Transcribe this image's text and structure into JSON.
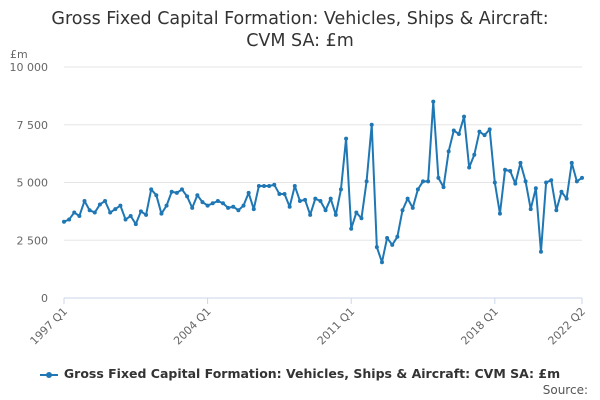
{
  "chart_data": {
    "type": "line",
    "title_line1": "Gross Fixed Capital Formation: Vehicles, Ships & Aircraft:",
    "title_line2": "CVM SA: £m",
    "ylabel": "£m",
    "ylim": [
      0,
      10000
    ],
    "yticks": [
      0,
      2500,
      5000,
      7500,
      10000
    ],
    "ytick_labels": [
      "0",
      "2 500",
      "5 000",
      "7 500",
      "10 000"
    ],
    "xtick_labels": [
      "1997 Q1",
      "2004 Q1",
      "2011 Q1",
      "2018 Q1",
      "2022 Q2"
    ],
    "xtick_index": [
      0,
      28,
      56,
      84,
      101
    ],
    "grid": true,
    "legend_position": "bottom",
    "source_label": "Source:",
    "color": "#1f77b4",
    "series": [
      {
        "name": "Gross Fixed Capital Formation: Vehicles, Ships & Aircraft: CVM SA: £m",
        "values": [
          3300,
          3400,
          3700,
          3550,
          4200,
          3800,
          3700,
          4050,
          4200,
          3700,
          3850,
          4000,
          3400,
          3550,
          3200,
          3750,
          3600,
          4700,
          4450,
          3650,
          4000,
          4600,
          4550,
          4700,
          4400,
          3900,
          4450,
          4150,
          4000,
          4100,
          4200,
          4100,
          3900,
          3950,
          3800,
          4000,
          4550,
          3850,
          4850,
          4850,
          4850,
          4900,
          4500,
          4500,
          3950,
          4850,
          4200,
          4250,
          3600,
          4300,
          4200,
          3800,
          4300,
          3600,
          4700,
          6900,
          3000,
          3700,
          3450,
          5050,
          7500,
          2200,
          1550,
          2600,
          2300,
          2650,
          3800,
          4300,
          3900,
          4700,
          5050,
          5050,
          8500,
          5200,
          4800,
          6350,
          7250,
          7100,
          7850,
          5650,
          6200,
          7200,
          7050,
          7300,
          5000,
          3650,
          5550,
          5500,
          4950,
          5850,
          5050,
          3850,
          4750,
          2000,
          5000,
          5100,
          3800,
          4600,
          4300,
          5850,
          5050,
          5200
        ]
      }
    ]
  }
}
